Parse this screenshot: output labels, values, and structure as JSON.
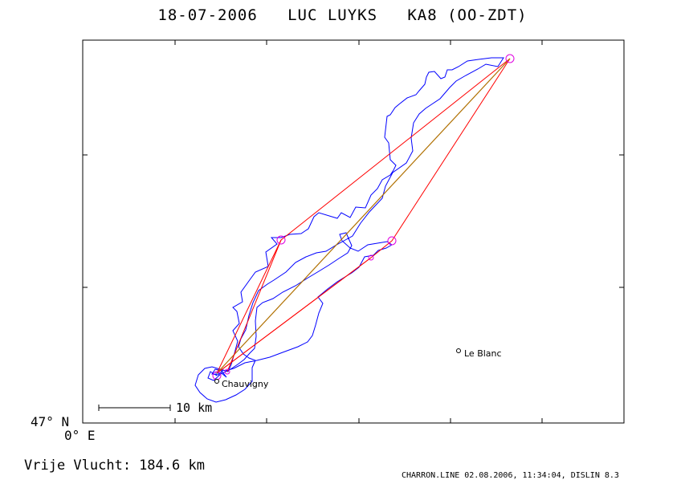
{
  "header": {
    "title": "18-07-2006   LUC LUYKS   KA8 (OO-ZDT)"
  },
  "map": {
    "corner_lat_label": "47° N",
    "corner_lon_label": "0° E",
    "scale_label": "10 km",
    "places": [
      {
        "name": "Chauvigny"
      },
      {
        "name": "Le Blanc"
      }
    ],
    "colors": {
      "track": "#0000ff",
      "triangle": "#ff0000",
      "baseline": "#b07000",
      "turnpoint": "#e000e0"
    }
  },
  "result": {
    "label": "Vrije Vlucht:",
    "value": "184.6 km"
  },
  "footer": {
    "text": "CHARRON.LINE 02.08.2006, 11:34:04, DISLIN 8.3"
  }
}
